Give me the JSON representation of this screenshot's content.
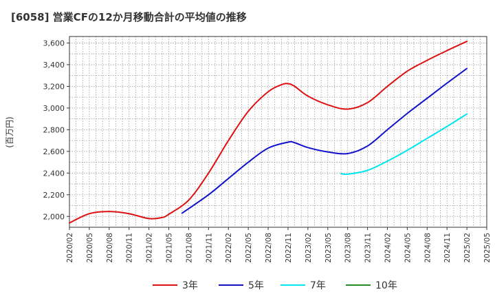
{
  "chart_data": {
    "type": "line",
    "title": "[6058]  営業CFの12か月移動合計の平均値の推移",
    "ylabel": "(百万円)",
    "xlabel": "",
    "ylim": [
      1900,
      3660
    ],
    "yticks": [
      2000,
      2200,
      2400,
      2600,
      2800,
      3000,
      3200,
      3400,
      3600
    ],
    "ytick_labels": [
      "2,000",
      "2,200",
      "2,400",
      "2,600",
      "2,800",
      "3,000",
      "3,200",
      "3,400",
      "3,600"
    ],
    "xticks": [
      "2020/02",
      "2020/05",
      "2020/08",
      "2020/11",
      "2021/02",
      "2021/05",
      "2021/08",
      "2021/11",
      "2022/02",
      "2022/05",
      "2022/08",
      "2022/11",
      "2023/02",
      "2023/05",
      "2023/08",
      "2023/11",
      "2024/02",
      "2024/05",
      "2024/08",
      "2024/11",
      "2025/02",
      "2025/05"
    ],
    "grid": true,
    "legend_position": "bottom",
    "series": [
      {
        "name": "3年",
        "color": "#dd1111",
        "x": [
          "2020/02",
          "2020/05",
          "2020/08",
          "2020/11",
          "2021/02",
          "2021/04",
          "2021/05",
          "2021/08",
          "2021/11",
          "2022/02",
          "2022/05",
          "2022/08",
          "2022/10",
          "2022/11",
          "2022/12",
          "2023/02",
          "2023/05",
          "2023/08",
          "2023/11",
          "2024/02",
          "2024/05",
          "2024/08",
          "2024/11",
          "2025/02"
        ],
        "values": [
          1940,
          2025,
          2045,
          2025,
          1980,
          1990,
          2020,
          2150,
          2400,
          2700,
          2970,
          3150,
          3215,
          3225,
          3200,
          3110,
          3030,
          2990,
          3050,
          3200,
          3340,
          3440,
          3530,
          3615
        ]
      },
      {
        "name": "5年",
        "color": "#1111cc",
        "x": [
          "2021/07",
          "2021/11",
          "2022/02",
          "2022/05",
          "2022/08",
          "2022/11",
          "2022/12",
          "2023/02",
          "2023/05",
          "2023/08",
          "2023/11",
          "2024/02",
          "2024/05",
          "2024/08",
          "2024/11",
          "2025/02"
        ],
        "values": [
          2030,
          2200,
          2350,
          2500,
          2630,
          2685,
          2680,
          2635,
          2595,
          2580,
          2650,
          2800,
          2950,
          3090,
          3230,
          3365
        ]
      },
      {
        "name": "7年",
        "color": "#00e5ee",
        "x": [
          "2023/07",
          "2023/08",
          "2023/11",
          "2024/02",
          "2024/05",
          "2024/08",
          "2024/11",
          "2025/02"
        ],
        "values": [
          2395,
          2390,
          2425,
          2510,
          2610,
          2720,
          2830,
          2945
        ]
      },
      {
        "name": "10年",
        "color": "#228b22",
        "x": [],
        "values": []
      }
    ]
  }
}
